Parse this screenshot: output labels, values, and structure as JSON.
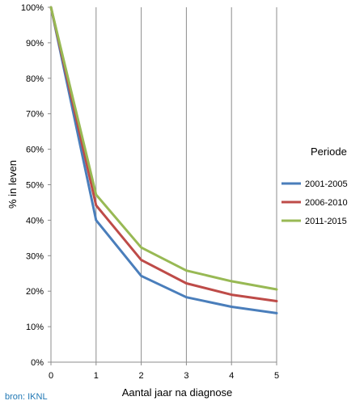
{
  "chart_data": {
    "type": "line",
    "title": "",
    "xlabel": "Aantal jaar na diagnose",
    "ylabel": "% in leven",
    "x": [
      0,
      1,
      2,
      3,
      4,
      5
    ],
    "xlim": [
      0,
      5
    ],
    "ylim": [
      0,
      100
    ],
    "x_ticks": [
      "0",
      "1",
      "2",
      "3",
      "4",
      "5"
    ],
    "y_ticks": [
      "0%",
      "10%",
      "20%",
      "30%",
      "40%",
      "50%",
      "60%",
      "70%",
      "80%",
      "90%",
      "100%"
    ],
    "grid": "vertical lines at each year",
    "legend_title": "Periode",
    "legend_position": "right",
    "series": [
      {
        "name": "2001-2005",
        "color": "#4a7ebb",
        "values": [
          100,
          40,
          24.3,
          18.3,
          15.6,
          13.8
        ]
      },
      {
        "name": "2006-2010",
        "color": "#be4b48",
        "values": [
          100,
          44.2,
          28.8,
          22.2,
          19,
          17.2
        ]
      },
      {
        "name": "2011-2015",
        "color": "#98b954",
        "values": [
          100,
          47.2,
          32.3,
          25.8,
          22.8,
          20.5
        ]
      }
    ]
  },
  "source": {
    "text": "bron: IKNL",
    "color": "#1f77b4"
  }
}
